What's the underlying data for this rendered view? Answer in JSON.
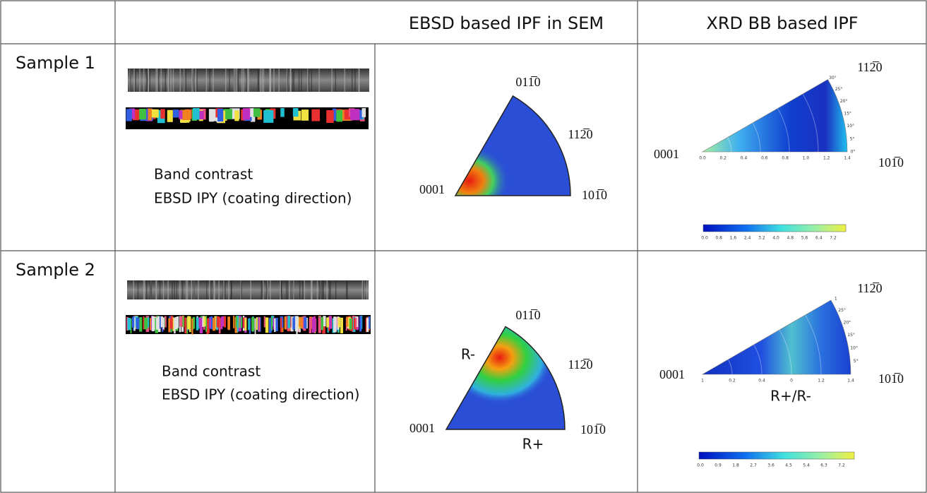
{
  "table": {
    "header": {
      "ebsd": "EBSD based IPF in SEM",
      "xrd": "XRD BB based IPF"
    },
    "rows": [
      {
        "label": "Sample 1",
        "captions": [
          "Band contrast",
          "EBSD IPY (coating direction)"
        ],
        "sem_ipf": {
          "pole_0001": "0001",
          "pole_01m10": "011̅0",
          "pole_11m20": "112̅0",
          "pole_10m10": "101̅0"
        },
        "xrd_ipf": {
          "pole_0001": "0001",
          "pole_11m20": "112̅0",
          "pole_10m10": "101̅0",
          "x_ticks": [
            "0.0",
            "0.2",
            "0.4",
            "0.6",
            "0.8",
            "1.0",
            "1.2",
            "1.4"
          ],
          "angle_ticks": [
            "30°",
            "25°",
            "20°",
            "15°",
            "10°",
            "5°",
            "0°"
          ],
          "colorbar_ticks": [
            "0.0",
            "0.8",
            "1.6",
            "2.4",
            "3.2",
            "4.0",
            "4.8",
            "5.6",
            "6.4",
            "7.2"
          ]
        }
      },
      {
        "label": "Sample 2",
        "captions": [
          "Band contrast",
          "EBSD IPY (coating direction)"
        ],
        "sem_ipf": {
          "pole_0001": "0001",
          "pole_01m10": "011̅0",
          "pole_11m20": "112̅0",
          "pole_10m10": "101̅0",
          "annotation_top": "R-",
          "annotation_bottom": "R+"
        },
        "xrd_ipf": {
          "pole_0001": "0001",
          "pole_11m20": "112̅0",
          "pole_10m10": "101̅0",
          "annotation": "R+/R-",
          "x_ticks": [
            "1",
            "0.2",
            "0.4",
            "0",
            "1.2",
            "1.4"
          ],
          "angle_ticks": [
            "1",
            "25°",
            "20°",
            "15°",
            "10°",
            "5°"
          ],
          "colorbar_ticks": [
            "0.0",
            "0.9",
            "1.8",
            "2.7",
            "3.6",
            "4.5",
            "5.4",
            "6.3",
            "7.2"
          ]
        }
      }
    ]
  }
}
